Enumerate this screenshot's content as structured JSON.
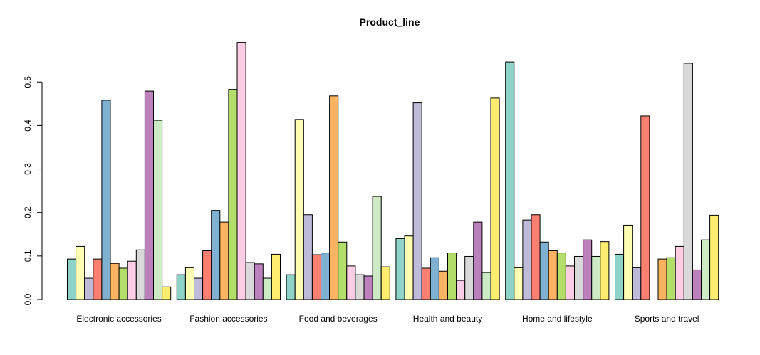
{
  "chart_data": {
    "type": "bar",
    "title": "Product_line",
    "xlabel": "",
    "ylabel": "",
    "ylim": [
      0,
      0.6
    ],
    "yticks": [
      "0.0",
      "0.1",
      "0.2",
      "0.3",
      "0.4",
      "0.5"
    ],
    "grid": false,
    "legend": "none",
    "categories": [
      "Electronic accessories",
      "Fashion accessories",
      "Food and beverages",
      "Health and beauty",
      "Home and lifestyle",
      "Sports and travel"
    ],
    "colors": [
      "#8DD3C7",
      "#FFFFB3",
      "#BEBADA",
      "#FB8072",
      "#80B1D3",
      "#FDB462",
      "#B3DE69",
      "#FCCDE5",
      "#D9D9D9",
      "#BC80BD",
      "#CCEBC5",
      "#FFED6F"
    ],
    "series": [
      {
        "values": [
          0.093,
          0.057,
          0.057,
          0.14,
          0.546,
          0.104
        ]
      },
      {
        "values": [
          0.122,
          0.073,
          0.414,
          0.146,
          0.073,
          0.171
        ]
      },
      {
        "values": [
          0.049,
          0.049,
          0.195,
          0.452,
          0.183,
          0.073
        ]
      },
      {
        "values": [
          0.093,
          0.112,
          0.103,
          0.072,
          0.195,
          0.422
        ]
      },
      {
        "values": [
          0.458,
          0.205,
          0.107,
          0.096,
          0.132,
          0.0
        ]
      },
      {
        "values": [
          0.083,
          0.178,
          0.468,
          0.065,
          0.112,
          0.093
        ]
      },
      {
        "values": [
          0.072,
          0.483,
          0.132,
          0.107,
          0.107,
          0.096
        ]
      },
      {
        "values": [
          0.088,
          0.591,
          0.077,
          0.044,
          0.077,
          0.122
        ]
      },
      {
        "values": [
          0.114,
          0.085,
          0.057,
          0.099,
          0.099,
          0.543
        ]
      },
      {
        "values": [
          0.479,
          0.082,
          0.054,
          0.178,
          0.137,
          0.068
        ]
      },
      {
        "values": [
          0.412,
          0.049,
          0.237,
          0.062,
          0.099,
          0.137
        ]
      },
      {
        "values": [
          0.029,
          0.104,
          0.075,
          0.463,
          0.133,
          0.194
        ]
      }
    ]
  }
}
